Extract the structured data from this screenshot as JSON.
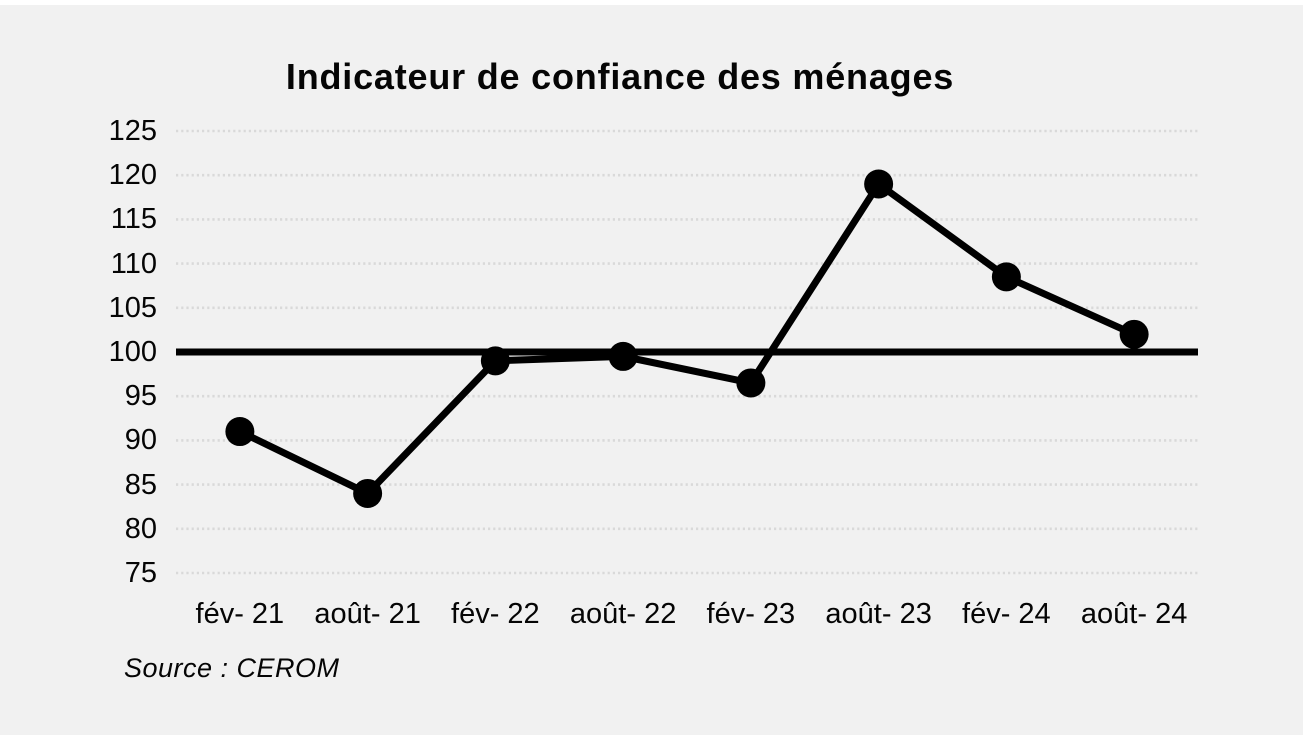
{
  "header": {
    "title": "Indicateur de confiance des ménages"
  },
  "footer": {
    "source": "Source : CEROM"
  },
  "chart_data": {
    "type": "line",
    "title": "Indicateur de confiance des ménages",
    "categories": [
      "fév- 21",
      "août- 21",
      "fév- 22",
      "août- 22",
      "fév- 23",
      "août- 23",
      "fév- 24",
      "août- 24"
    ],
    "series": [
      {
        "name": "Indicateur de confiance des ménages",
        "values": [
          91,
          84,
          99,
          99.5,
          96.5,
          119,
          108.5,
          102
        ]
      }
    ],
    "xlabel": "",
    "ylabel": "",
    "ylim": [
      75,
      125
    ],
    "ytick_step": 5,
    "yticks": [
      75,
      80,
      85,
      90,
      95,
      100,
      105,
      110,
      115,
      120,
      125
    ],
    "reference_line": 100,
    "grid": "horizontal-dotted",
    "legend_position": "none",
    "annotations": [
      "Source : CEROM"
    ],
    "colors": {
      "background": "#f1f1f1",
      "series_line": "#000000",
      "marker": "#000000",
      "reference_line": "#000000",
      "gridline": "#d9d9d9",
      "text": "#050505"
    }
  }
}
